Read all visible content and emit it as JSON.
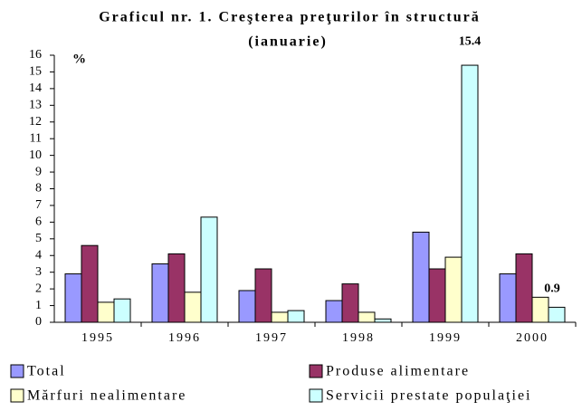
{
  "chart_data": {
    "type": "bar",
    "title": "Graficul nr. 1. Creşterea preţurilor în structură",
    "subtitle": "(ianuarie)",
    "ylabel": "%",
    "categories": [
      "1995",
      "1996",
      "1997",
      "1998",
      "1999",
      "2000"
    ],
    "series": [
      {
        "name": "Total",
        "color": "#9999ff",
        "values": [
          2.9,
          3.5,
          1.9,
          1.3,
          5.4,
          2.9
        ]
      },
      {
        "name": "Produse alimentare",
        "color": "#993366",
        "values": [
          4.6,
          4.1,
          3.2,
          2.3,
          3.2,
          4.1
        ]
      },
      {
        "name": "Mărfuri nealimentare",
        "color": "#ffffcc",
        "values": [
          1.2,
          1.8,
          0.6,
          0.6,
          3.9,
          1.5
        ]
      },
      {
        "name": "Servicii prestate populaţiei",
        "color": "#ccffff",
        "values": [
          1.4,
          6.3,
          0.7,
          0.2,
          15.4,
          0.9
        ],
        "value_labels": [
          null,
          null,
          null,
          null,
          "15.4",
          "0.9"
        ]
      }
    ],
    "ylim": [
      0,
      16
    ],
    "yticks": [
      0,
      1,
      2,
      3,
      4,
      5,
      6,
      7,
      8,
      9,
      10,
      11,
      12,
      13,
      14,
      15,
      16
    ],
    "legend": "bottom"
  }
}
